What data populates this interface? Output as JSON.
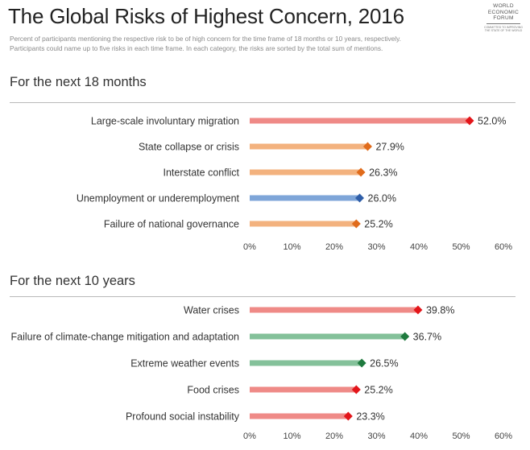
{
  "header": {
    "title": "The Global Risks of Highest Concern, 2016",
    "subtitle_line1": "Percent of participants mentioning the respective risk to be of high concern for the time frame of 18 months or 10 years, respectively.",
    "subtitle_line2": "Participants could name up to five risks in each time frame. In each category, the risks are sorted by the total sum of mentions."
  },
  "logo": {
    "line1": "WORLD",
    "line2": "ECONOMIC",
    "line3": "FORUM",
    "tagline": "COMMITTED TO IMPROVING THE STATE OF THE WORLD"
  },
  "colors": {
    "red_bar": "#ef8a87",
    "red_marker": "#e3151a",
    "orange_bar": "#f3b27e",
    "orange_marker": "#e06b1b",
    "blue_bar": "#7ea5d8",
    "blue_marker": "#2f5ea8",
    "green_bar": "#84c19a",
    "green_marker": "#1f7a3e"
  },
  "chart_data": [
    {
      "type": "bar",
      "title": "For the next 18 months",
      "xlim": [
        0,
        60
      ],
      "tick_labels": [
        "0%",
        "10%",
        "20%",
        "30%",
        "40%",
        "50%",
        "60%"
      ],
      "categories": [
        "Large-scale involuntary migration",
        "State collapse or crisis",
        "Interstate conflict",
        "Unemployment or underemployment",
        "Failure of national governance"
      ],
      "values": [
        52.0,
        27.9,
        26.3,
        26.0,
        25.2
      ],
      "value_labels": [
        "52.0%",
        "27.9%",
        "26.3%",
        "26.0%",
        "25.2%"
      ],
      "color_keys": [
        "red",
        "orange",
        "orange",
        "blue",
        "orange"
      ],
      "grid": false
    },
    {
      "type": "bar",
      "title": "For the next 10 years",
      "xlim": [
        0,
        60
      ],
      "tick_labels": [
        "0%",
        "10%",
        "20%",
        "30%",
        "40%",
        "50%",
        "60%"
      ],
      "categories": [
        "Water crises",
        "Failure of climate-change mitigation and adaptation",
        "Extreme weather events",
        "Food crises",
        "Profound social instability"
      ],
      "values": [
        39.8,
        36.7,
        26.5,
        25.2,
        23.3
      ],
      "value_labels": [
        "39.8%",
        "36.7%",
        "26.5%",
        "25.2%",
        "23.3%"
      ],
      "color_keys": [
        "red",
        "green",
        "green",
        "red",
        "red"
      ],
      "grid": false
    }
  ]
}
